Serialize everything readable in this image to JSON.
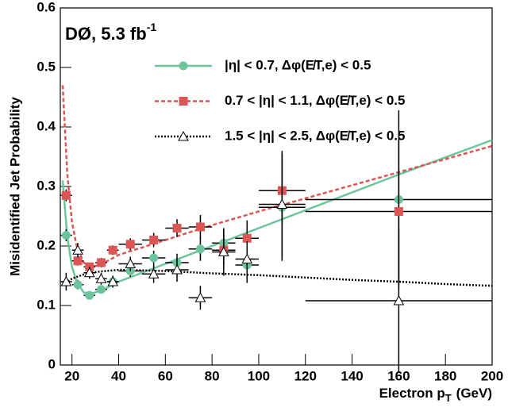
{
  "chart_data": {
    "type": "scatter",
    "annotation": {
      "text": "DØ, 5.3 fb",
      "sup": "-1"
    },
    "ylabel": "Misidentified Jet Probability",
    "xlabel": {
      "text": "Electron p",
      "sub": "T",
      "unit": "(GeV)"
    },
    "xlim": [
      15,
      200
    ],
    "ylim": [
      0,
      0.6
    ],
    "xticks": [
      20,
      40,
      60,
      80,
      100,
      120,
      140,
      160,
      180,
      200
    ],
    "yticks": [
      0,
      0.1,
      0.2,
      0.3,
      0.4,
      0.5,
      0.6
    ],
    "x": [
      17.5,
      22.5,
      27.5,
      32.5,
      37.5,
      45,
      55,
      65,
      75,
      85,
      95,
      110,
      160
    ],
    "xerr": [
      2.5,
      2.5,
      2.5,
      2.5,
      2.5,
      5,
      5,
      5,
      5,
      5,
      5,
      10,
      40
    ],
    "fit_x": [
      16,
      18,
      20,
      22,
      25,
      28,
      32,
      40,
      60,
      80,
      100,
      120,
      140,
      160,
      180,
      200
    ],
    "series": [
      {
        "name": "|η| < 0.7, Δφ(E̸T,e) < 0.5",
        "color": "#6cc49c",
        "marker": "circle",
        "line": "solid",
        "values": [
          0.218,
          0.135,
          0.117,
          0.127,
          0.14,
          0.158,
          0.18,
          0.172,
          0.195,
          0.205,
          0.168,
          0.265,
          0.278
        ],
        "yerr": [
          0.01,
          0.008,
          0.007,
          0.007,
          0.008,
          0.01,
          0.012,
          0.015,
          0.02,
          0.025,
          0.03,
          0.09,
          0.15
        ],
        "fit": [
          0.31,
          0.215,
          0.165,
          0.14,
          0.122,
          0.12,
          0.124,
          0.14,
          0.17,
          0.2,
          0.23,
          0.26,
          0.29,
          0.32,
          0.349,
          0.378
        ]
      },
      {
        "name": "0.7 < |η| < 1.1, Δφ(E̸T,e) < 0.5",
        "color": "#dd5555",
        "marker": "square",
        "line": "dashed",
        "values": [
          0.285,
          0.175,
          0.165,
          0.172,
          0.193,
          0.203,
          0.21,
          0.23,
          0.232,
          0.193,
          0.213,
          0.293,
          0.258
        ],
        "yerr": [
          0.01,
          0.008,
          0.007,
          0.008,
          0.008,
          0.01,
          0.012,
          0.015,
          0.02,
          0.025,
          0.03,
          0.06,
          0.12
        ],
        "fit": [
          0.47,
          0.32,
          0.24,
          0.2,
          0.172,
          0.165,
          0.168,
          0.185,
          0.21,
          0.235,
          0.258,
          0.28,
          0.302,
          0.324,
          0.346,
          0.368
        ]
      },
      {
        "name": "1.5 < |η| < 2.5, Δφ(E̸T,e) < 0.5",
        "color": "#000000",
        "marker": "triangle",
        "line": "dotted",
        "values": [
          0.14,
          0.193,
          0.155,
          0.145,
          0.14,
          0.17,
          0.153,
          0.16,
          0.113,
          0.19,
          0.178,
          0.27,
          0.108
        ],
        "yerr": [
          0.015,
          0.012,
          0.01,
          0.01,
          0.01,
          0.012,
          0.015,
          0.02,
          0.02,
          0.04,
          0.03,
          0.09,
          0.12
        ],
        "fit": [
          0.135,
          0.14,
          0.145,
          0.148,
          0.152,
          0.155,
          0.157,
          0.16,
          0.158,
          0.154,
          0.151,
          0.147,
          0.143,
          0.14,
          0.136,
          0.133
        ]
      }
    ]
  }
}
